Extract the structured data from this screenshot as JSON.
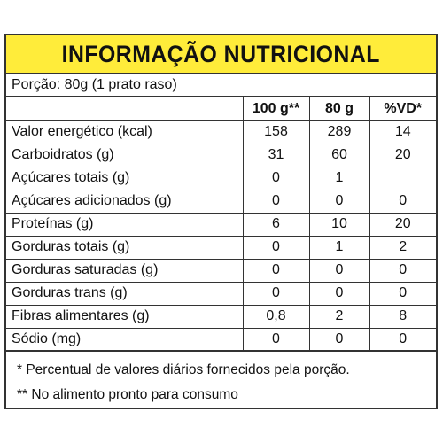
{
  "title": "INFORMAÇÃO NUTRICIONAL",
  "portion": "Porção: 80g (1 prato raso)",
  "columns": [
    "",
    "100 g**",
    "80 g",
    "%VD*"
  ],
  "rows": [
    [
      "Valor energético (kcal)",
      "158",
      "289",
      "14"
    ],
    [
      "Carboidratos (g)",
      "31",
      "60",
      "20"
    ],
    [
      "Açúcares totais (g)",
      "0",
      "1",
      ""
    ],
    [
      "Açúcares adicionados (g)",
      "0",
      "0",
      "0"
    ],
    [
      "Proteínas (g)",
      "6",
      "10",
      "20"
    ],
    [
      "Gorduras totais (g)",
      "0",
      "1",
      "2"
    ],
    [
      "Gorduras saturadas (g)",
      "0",
      "0",
      "0"
    ],
    [
      "Gorduras trans (g)",
      "0",
      "0",
      "0"
    ],
    [
      "Fibras alimentares (g)",
      "0,8",
      "2",
      "8"
    ],
    [
      "Sódio (mg)",
      "0",
      "0",
      "0"
    ]
  ],
  "footnotes": [
    "* Percentual de valores diários fornecidos pela porção.",
    "** No alimento pronto para consumo"
  ],
  "colors": {
    "title_bg": "#ffec3a",
    "border": "#333333"
  }
}
